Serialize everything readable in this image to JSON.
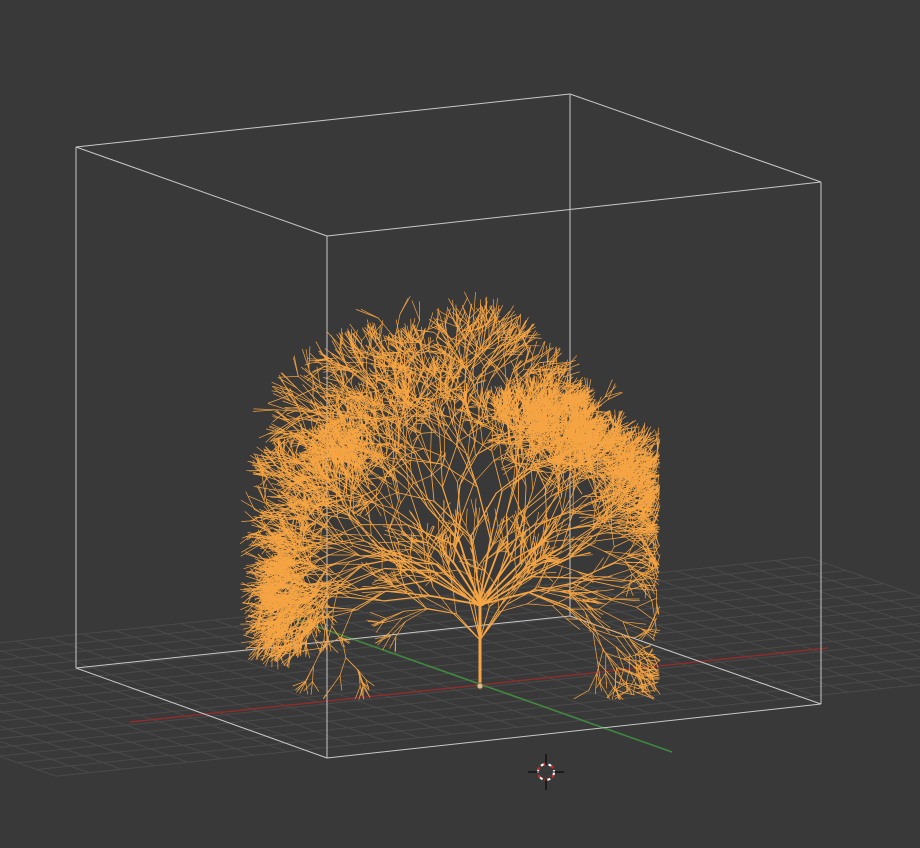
{
  "viewport": {
    "background_color": "#393939",
    "grid_color": "#4a4a4a",
    "x_axis_color": "#8a2e2e",
    "y_axis_color": "#3f8a3f",
    "bounding_box_color": "#c8c8c8",
    "tree_color": "#f6a544",
    "object_origin_color": "#d9c090",
    "icons": {
      "cursor": "3d-cursor-icon",
      "origin": "object-origin-icon"
    }
  }
}
